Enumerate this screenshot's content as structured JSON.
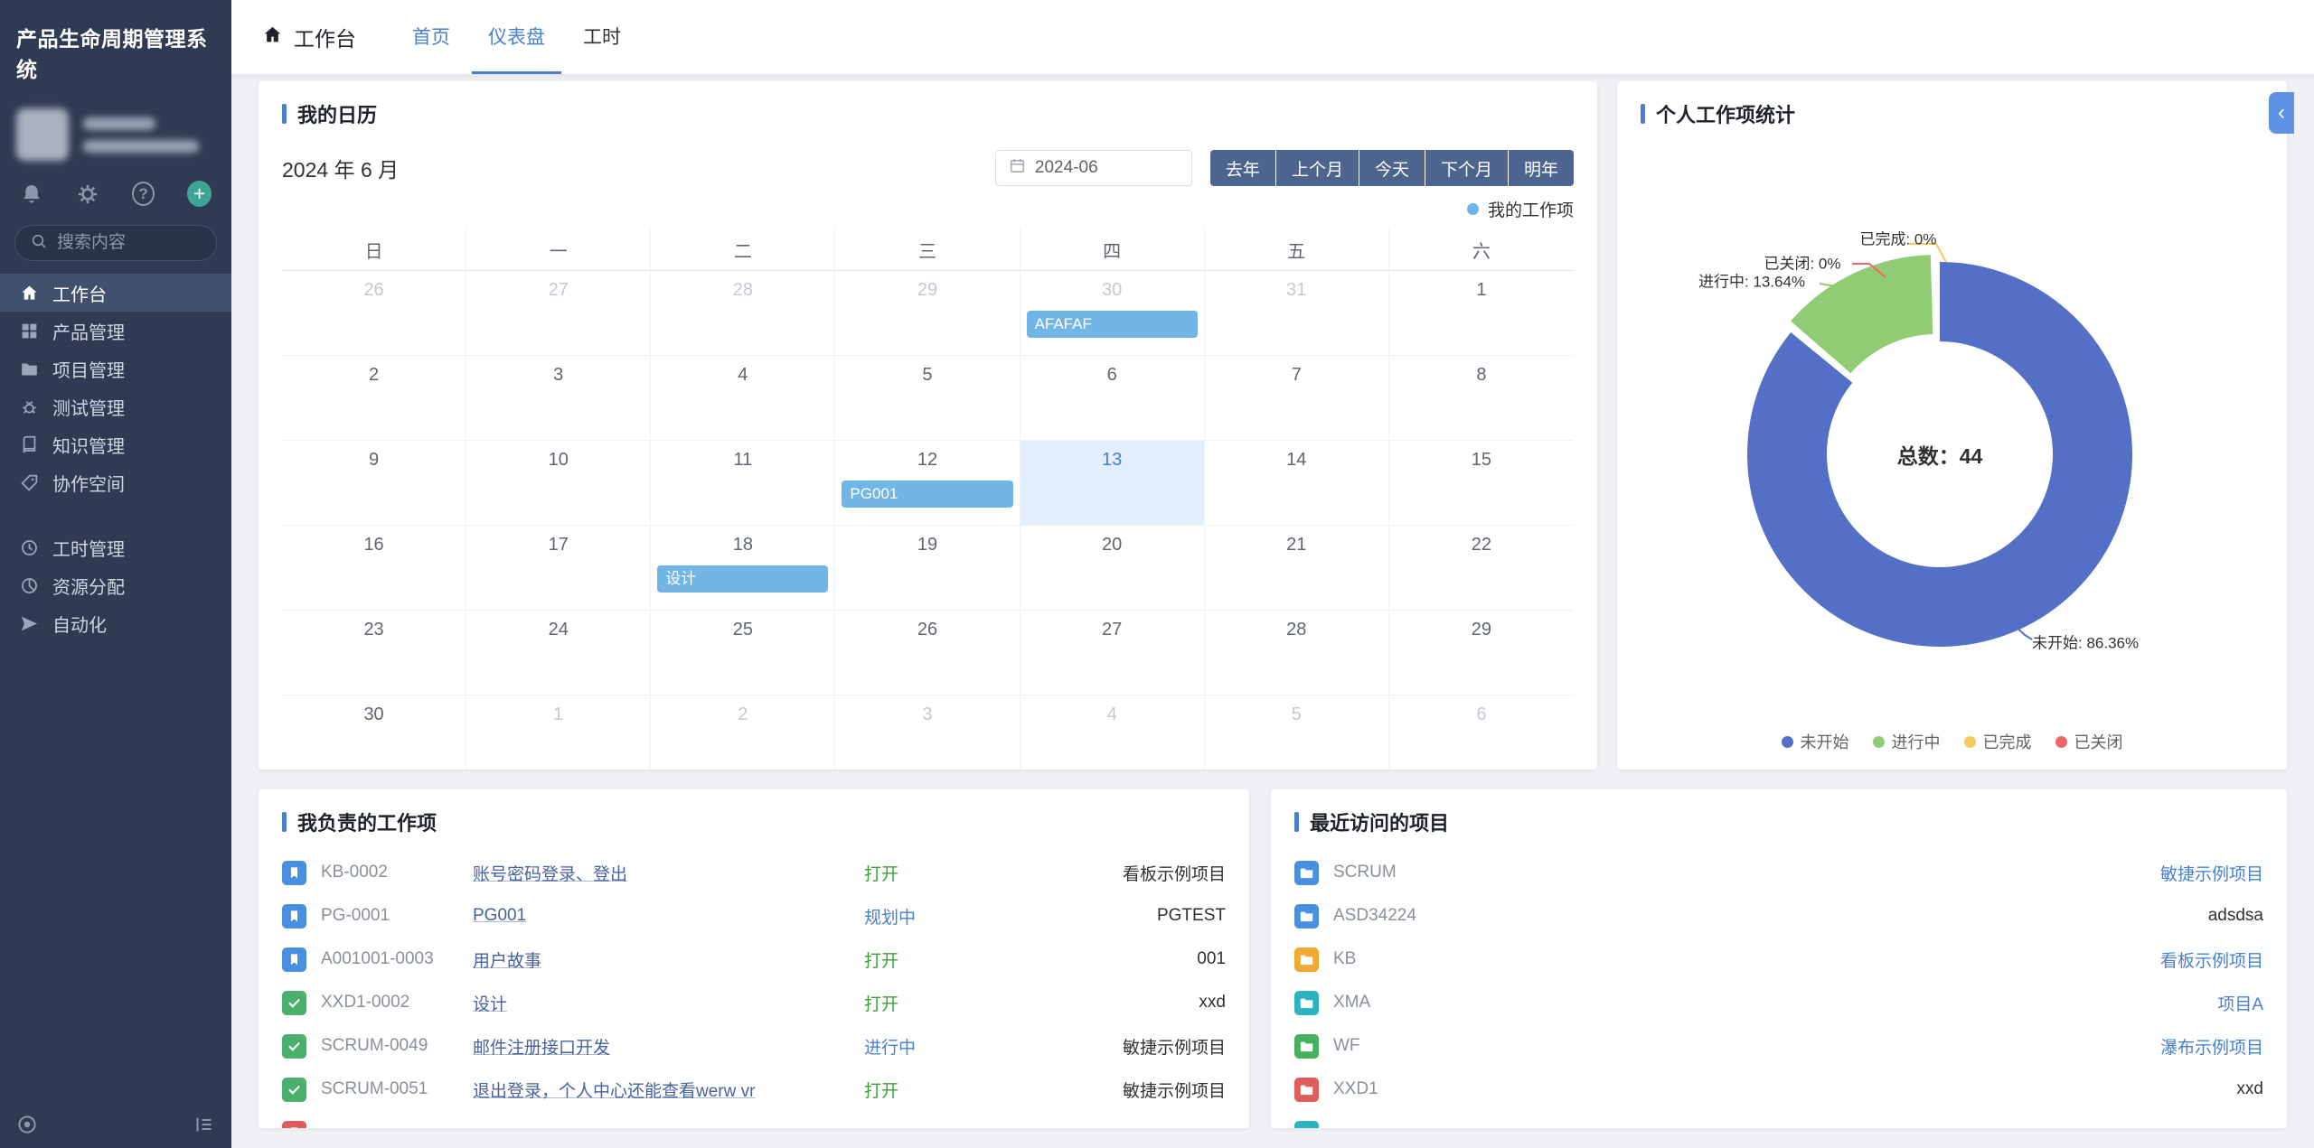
{
  "app": {
    "title": "产品生命周期管理系统"
  },
  "colors": {
    "accent": "#4a7fd0",
    "sidebar_bg": "#2f3b52",
    "calendar_event": "#72b6e7",
    "status_open_green": "#3da03d",
    "status_progress_blue": "#4a7fd0",
    "pie_palette": [
      "#5470c6",
      "#91cc75",
      "#fac858",
      "#ee6666"
    ]
  },
  "sidebar": {
    "search_placeholder": "搜索内容",
    "action_icons": [
      "bell-icon",
      "gear-icon",
      "help-icon",
      "plus-icon"
    ],
    "icon_glyphs": {
      "help": "?",
      "plus": "+"
    },
    "menu_groups": [
      [
        {
          "key": "workbench",
          "label": "工作台",
          "icon": "home",
          "active": true
        },
        {
          "key": "products",
          "label": "产品管理",
          "icon": "grid"
        },
        {
          "key": "projects",
          "label": "项目管理",
          "icon": "folder"
        },
        {
          "key": "testing",
          "label": "测试管理",
          "icon": "bug"
        },
        {
          "key": "knowledge",
          "label": "知识管理",
          "icon": "book"
        },
        {
          "key": "collab",
          "label": "协作空间",
          "icon": "tag"
        }
      ],
      [
        {
          "key": "hours",
          "label": "工时管理",
          "icon": "clock"
        },
        {
          "key": "resources",
          "label": "资源分配",
          "icon": "pie"
        },
        {
          "key": "automation",
          "label": "自动化",
          "icon": "send"
        }
      ]
    ]
  },
  "topbar": {
    "workspace_label": "工作台",
    "tabs": [
      {
        "key": "home",
        "label": "首页",
        "color": "#4a7fd0"
      },
      {
        "key": "dashboard",
        "label": "仪表盘",
        "active": true
      },
      {
        "key": "worktime",
        "label": "工时"
      }
    ]
  },
  "calendar": {
    "title": "我的日历",
    "month_label": "2024 年 6 月",
    "date_value": "2024-06",
    "nav_buttons": [
      {
        "key": "prev-year",
        "label": "去年"
      },
      {
        "key": "prev-month",
        "label": "上个月"
      },
      {
        "key": "today",
        "label": "今天"
      },
      {
        "key": "next-month",
        "label": "下个月"
      },
      {
        "key": "next-year",
        "label": "明年"
      }
    ],
    "legend_label": "我的工作项",
    "weekdays": [
      "日",
      "一",
      "二",
      "三",
      "四",
      "五",
      "六"
    ],
    "cells": [
      {
        "day": "26",
        "muted": true
      },
      {
        "day": "27",
        "muted": true
      },
      {
        "day": "28",
        "muted": true
      },
      {
        "day": "29",
        "muted": true
      },
      {
        "day": "30",
        "muted": true,
        "event": "AFAFAF"
      },
      {
        "day": "31",
        "muted": true
      },
      {
        "day": "1"
      },
      {
        "day": "2"
      },
      {
        "day": "3"
      },
      {
        "day": "4"
      },
      {
        "day": "5"
      },
      {
        "day": "6"
      },
      {
        "day": "7"
      },
      {
        "day": "8"
      },
      {
        "day": "9"
      },
      {
        "day": "10"
      },
      {
        "day": "11"
      },
      {
        "day": "12",
        "event": "PG001"
      },
      {
        "day": "13",
        "today": true
      },
      {
        "day": "14"
      },
      {
        "day": "15"
      },
      {
        "day": "16"
      },
      {
        "day": "17"
      },
      {
        "day": "18",
        "event": "设计"
      },
      {
        "day": "19"
      },
      {
        "day": "20"
      },
      {
        "day": "21"
      },
      {
        "day": "22"
      },
      {
        "day": "23"
      },
      {
        "day": "24"
      },
      {
        "day": "25"
      },
      {
        "day": "26"
      },
      {
        "day": "27"
      },
      {
        "day": "28"
      },
      {
        "day": "29"
      },
      {
        "day": "30"
      },
      {
        "day": "1",
        "muted": true
      },
      {
        "day": "2",
        "muted": true
      },
      {
        "day": "3",
        "muted": true
      },
      {
        "day": "4",
        "muted": true
      },
      {
        "day": "5",
        "muted": true
      },
      {
        "day": "6",
        "muted": true
      }
    ]
  },
  "stats": {
    "title": "个人工作项统计",
    "collapse_icon": "‹"
  },
  "chart_data": {
    "type": "pie",
    "title": "个人工作项统计",
    "center_text": "总数：44",
    "total": 44,
    "legend_position": "bottom",
    "label_format": "{name}: {percent}%",
    "series": [
      {
        "name": "未开始",
        "value": 38,
        "percent": 86.36,
        "color": "#5470c6"
      },
      {
        "name": "进行中",
        "value": 6,
        "percent": 13.64,
        "color": "#91cc75"
      },
      {
        "name": "已完成",
        "value": 0,
        "percent": 0,
        "color": "#fac858"
      },
      {
        "name": "已关闭",
        "value": 0,
        "percent": 0,
        "color": "#ee6666"
      }
    ]
  },
  "my_items": {
    "title": "我负责的工作项",
    "rows": [
      {
        "icon": "bookmark",
        "icon_color": "#4a90e2",
        "key": "KB-0002",
        "title": "账号密码登录、登出",
        "status": "打开",
        "status_color": "#3da03d",
        "project": "看板示例项目"
      },
      {
        "icon": "bookmark",
        "icon_color": "#4a90e2",
        "key": "PG-0001",
        "title": "PG001",
        "status": "规划中",
        "status_color": "#4a7fd0",
        "project": "PGTEST"
      },
      {
        "icon": "bookmark",
        "icon_color": "#4a90e2",
        "key": "A001001-0003",
        "title": "用户故事",
        "status": "打开",
        "status_color": "#3da03d",
        "project": "001"
      },
      {
        "icon": "check",
        "icon_color": "#4caf6e",
        "key": "XXD1-0002",
        "title": "设计",
        "status": "打开",
        "status_color": "#3da03d",
        "project": "xxd"
      },
      {
        "icon": "check",
        "icon_color": "#4caf6e",
        "key": "SCRUM-0049",
        "title": "邮件注册接口开发",
        "status": "进行中",
        "status_color": "#4a7fd0",
        "project": "敏捷示例项目"
      },
      {
        "icon": "check",
        "icon_color": "#4caf6e",
        "key": "SCRUM-0051",
        "title": "退出登录，个人中心还能查看werw vr",
        "status": "打开",
        "status_color": "#3da03d",
        "project": "敏捷示例项目"
      },
      {
        "icon": "bookmark",
        "icon_color": "#e25c5c",
        "key": "",
        "title": "",
        "status": "",
        "status_color": "",
        "project": "",
        "partial": true
      }
    ]
  },
  "recent_projects": {
    "title": "最近访问的项目",
    "rows": [
      {
        "icon_color": "#4a90e2",
        "name": "SCRUM",
        "project": "敏捷示例项目",
        "project_color": "#4a7fd0"
      },
      {
        "icon_color": "#4a90e2",
        "name": "ASD34224",
        "project": "adsdsa",
        "project_color": "#303133"
      },
      {
        "icon_color": "#f0a933",
        "name": "KB",
        "project": "看板示例项目",
        "project_color": "#4a7fd0"
      },
      {
        "icon_color": "#2bb3c0",
        "name": "XMA",
        "project": "项目A",
        "project_color": "#4a7fd0"
      },
      {
        "icon_color": "#47b05f",
        "name": "WF",
        "project": "瀑布示例项目",
        "project_color": "#4a7fd0"
      },
      {
        "icon_color": "#e25c5c",
        "name": "XXD1",
        "project": "xxd",
        "project_color": "#303133"
      },
      {
        "icon_color": "#2bb3c0",
        "name": "",
        "project": "",
        "project_color": "",
        "partial": true
      }
    ]
  }
}
